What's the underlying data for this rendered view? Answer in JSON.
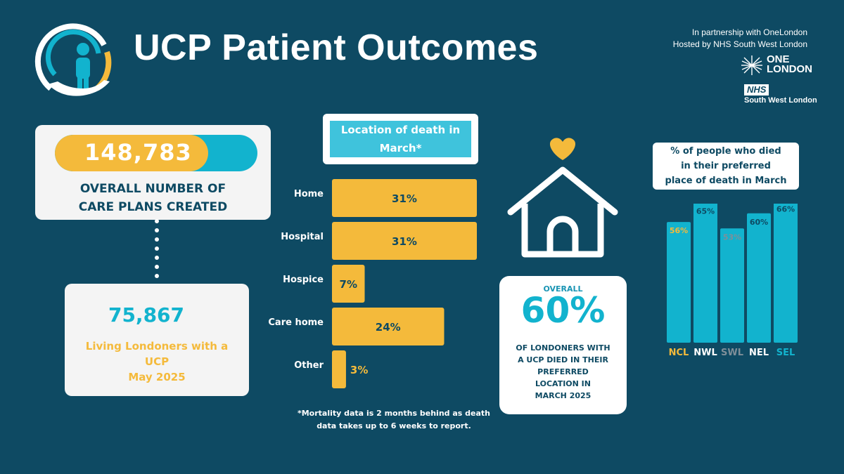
{
  "header": {
    "title": "UCP Patient Outcomes",
    "partnership": "In partnership with OneLondon",
    "hosted": "Hosted by NHS South West London",
    "onelondon_line1": "ONE",
    "onelondon_line2": "LONDON",
    "nhs_badge": "NHS",
    "nhs_region": "South West London",
    "logo_icon": "person-in-hand-icon"
  },
  "care_plans": {
    "value": "148,783",
    "label_line1": "OVERALL NUMBER OF",
    "label_line2": "CARE PLANS CREATED"
  },
  "living": {
    "value": "75,867",
    "line1": "Living Londoners with a",
    "line2": "UCP",
    "line3": "May 2025"
  },
  "location": {
    "title_line1": "Location of death in",
    "title_line2": "March*",
    "footnote_line1": "*Mortality data is 2 months behind as death",
    "footnote_line2": "data takes up to 6 weeks to report."
  },
  "overall": {
    "label": "OVERALL",
    "value": "60%",
    "desc_line1": "OF LONDONERS WITH",
    "desc_line2": "A UCP DIED IN THEIR",
    "desc_line3": "PREFERRED",
    "desc_line4": "LOCATION IN",
    "desc_line5": "MARCH 2025",
    "icon": "house-with-heart-icon"
  },
  "preferred": {
    "title_line1": "%  of people who died",
    "title_line2": "in their preferred",
    "title_line3": "place of death in March"
  },
  "colors": {
    "background": "#0e4a63",
    "yellow": "#f4ba3b",
    "cyan": "#12b3ce",
    "label_navy": "#0e4a63",
    "swl_grey": "#7f8f99"
  },
  "chart_data": [
    {
      "type": "bar",
      "orientation": "horizontal",
      "title": "Location of death in March*",
      "categories": [
        "Home",
        "Hospital",
        "Hospice",
        "Care home",
        "Other"
      ],
      "values": [
        31,
        31,
        7,
        24,
        3
      ],
      "data_labels": [
        "31%",
        "31%",
        "7%",
        "24%",
        "3%"
      ],
      "unit": "%"
    },
    {
      "type": "bar",
      "title": "%  of people who died in their preferred place of death in March",
      "categories": [
        "NCL",
        "NWL",
        "SWL",
        "NEL",
        "SEL"
      ],
      "values": [
        56,
        65,
        53,
        60,
        66
      ],
      "data_labels": [
        "56%",
        "65%",
        "53%",
        "60%",
        "66%"
      ],
      "label_colors": [
        "#f4ba3b",
        "#ffffff",
        "#7f8f99",
        "#ffffff",
        "#12b3ce"
      ],
      "bar_color": "#12b3ce",
      "unit": "%"
    }
  ]
}
